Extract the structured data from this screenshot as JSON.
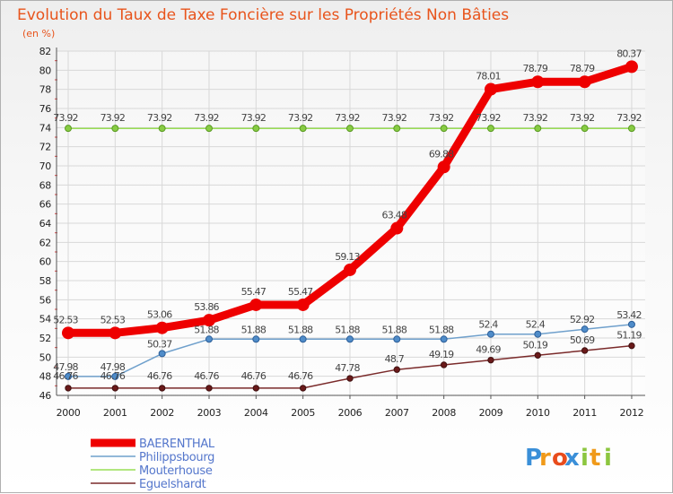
{
  "chart_data": {
    "type": "line",
    "title": "Evolution du Taux de Taxe Foncière sur les Propriétés Non Bâties",
    "subtitle": "(en %)",
    "xlabel": "",
    "ylabel": "",
    "ylim": [
      46,
      82
    ],
    "y_ticks": [
      46,
      48,
      50,
      52,
      54,
      56,
      58,
      60,
      62,
      64,
      66,
      68,
      70,
      72,
      74,
      76,
      78,
      80,
      82
    ],
    "grid": true,
    "categories": [
      "2000",
      "2001",
      "2002",
      "2003",
      "2004",
      "2005",
      "2006",
      "2007",
      "2008",
      "2009",
      "2010",
      "2011",
      "2012"
    ],
    "series": [
      {
        "name": "BAERENTHAL",
        "color": "#ee0000",
        "values": [
          52.53,
          52.53,
          53.06,
          53.86,
          55.47,
          55.47,
          59.13,
          63.48,
          69.88,
          78.01,
          78.79,
          78.79,
          80.37
        ],
        "labels": [
          "52.53",
          "52.53",
          "53.06",
          "53.86",
          "55.47",
          "55.47",
          "59.13",
          "63.48",
          "69.88",
          "78.01",
          "78.79",
          "78.79",
          "80.37"
        ]
      },
      {
        "name": "Philippsbourg",
        "color": "#6fa0cc",
        "values": [
          47.98,
          47.98,
          50.37,
          51.88,
          51.88,
          51.88,
          51.88,
          51.88,
          51.88,
          52.4,
          52.4,
          52.92,
          53.42
        ],
        "labels": [
          "47.98",
          "47.98",
          "50.37",
          "51.88",
          "51.88",
          "51.88",
          "51.88",
          "51.88",
          "51.88",
          "52.4",
          "52.4",
          "52.92",
          "53.42"
        ]
      },
      {
        "name": "Mouterhouse",
        "color": "#99dd55",
        "values": [
          73.92,
          73.92,
          73.92,
          73.92,
          73.92,
          73.92,
          73.92,
          73.92,
          73.92,
          73.92,
          73.92,
          73.92,
          73.92
        ],
        "labels": [
          "73.92",
          "73.92",
          "73.92",
          "73.92",
          "73.92",
          "73.92",
          "73.92",
          "73.92",
          "73.92",
          "73.92",
          "73.92",
          "73.92",
          "73.92"
        ]
      },
      {
        "name": "Eguelshardt",
        "color": "#7a2a2a",
        "values": [
          46.76,
          46.76,
          46.76,
          46.76,
          46.76,
          46.76,
          47.78,
          48.7,
          49.19,
          49.69,
          50.19,
          50.69,
          51.19
        ],
        "labels": [
          "46.76",
          "46.76",
          "46.76",
          "46.76",
          "46.76",
          "46.76",
          "47.78",
          "48.7",
          "49.19",
          "49.69",
          "50.19",
          "50.69",
          "51.19"
        ]
      }
    ],
    "legend_position": "bottom-left"
  },
  "brand": {
    "letters": [
      "P",
      "r",
      "o",
      "x",
      "i",
      "t",
      "i"
    ],
    "colors": [
      "#3a8fd8",
      "#f09a1a",
      "#e84c1c",
      "#3a8fd8",
      "#8cc63f",
      "#f09a1a",
      "#8cc63f"
    ]
  }
}
